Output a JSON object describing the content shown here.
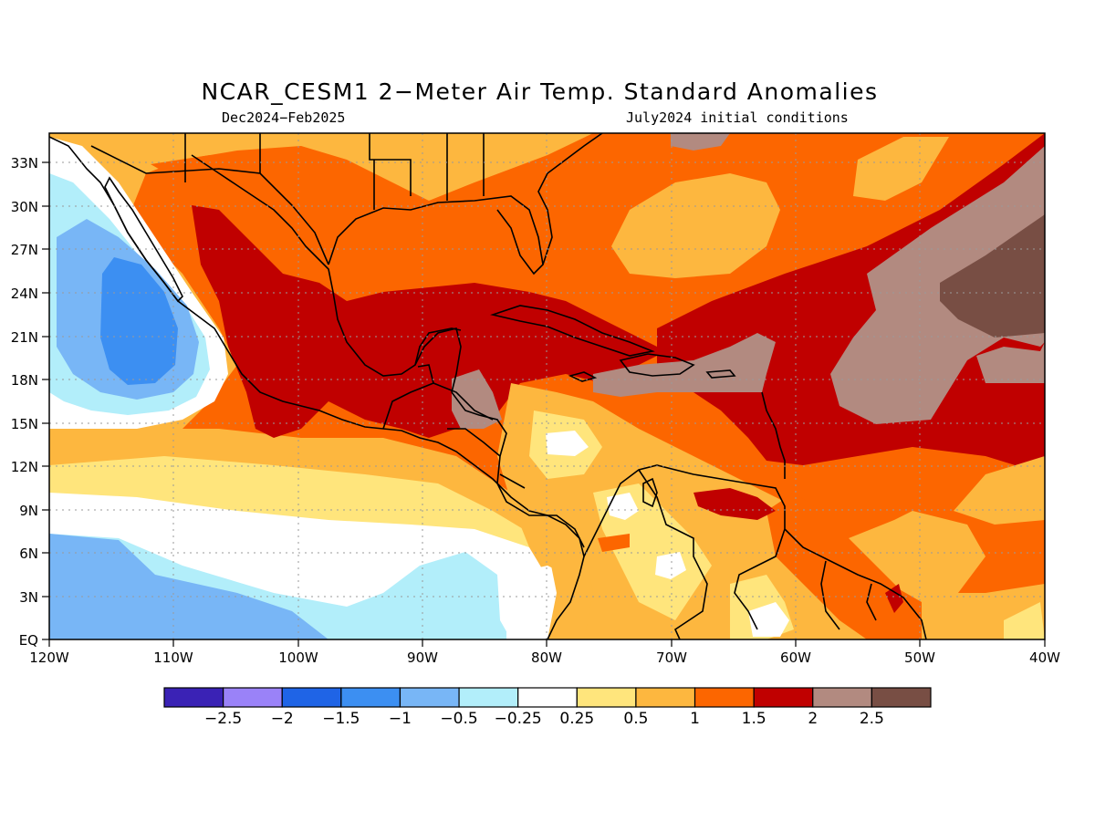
{
  "header": {
    "title": "NCAR_CESM1 2−Meter Air Temp. Standard Anomalies",
    "period": "Dec2024−Feb2025",
    "init": "July2024 initial conditions"
  },
  "axes": {
    "x_ticks": [
      "120W",
      "110W",
      "100W",
      "90W",
      "80W",
      "70W",
      "60W",
      "50W",
      "40W"
    ],
    "y_ticks": [
      "EQ",
      "3N",
      "6N",
      "9N",
      "12N",
      "15N",
      "18N",
      "21N",
      "24N",
      "27N",
      "30N",
      "33N"
    ]
  },
  "colorbar": {
    "colors": [
      "#3a22b5",
      "#9a82f8",
      "#1f64e6",
      "#3c8ff2",
      "#78b6f6",
      "#b2eefa",
      "#ffffff",
      "#ffe57c",
      "#fdb73f",
      "#fc6600",
      "#c00000",
      "#b28a80",
      "#784e44"
    ],
    "labels": [
      "−2.5",
      "−2",
      "−1.5",
      "−1",
      "−0.5",
      "−0.25",
      "0.25",
      "0.5",
      "1",
      "1.5",
      "2",
      "2.5"
    ]
  },
  "map": {
    "region": "Central America, Gulf of Mexico, Caribbean",
    "lon_range": [
      -120,
      -40
    ],
    "lat_range": [
      0,
      35
    ],
    "colors": {
      "base": "#fc6600",
      "warm_1": "#fdb73f",
      "warm_05": "#ffe57c",
      "neutral": "#ffffff",
      "cool_025": "#b2eefa",
      "cool_05": "#78b6f6",
      "cool_1": "#3c8ff2",
      "hot_2": "#c00000",
      "hot_25": "#b28a80",
      "hot_3": "#784e44",
      "coast": "#000000"
    }
  }
}
